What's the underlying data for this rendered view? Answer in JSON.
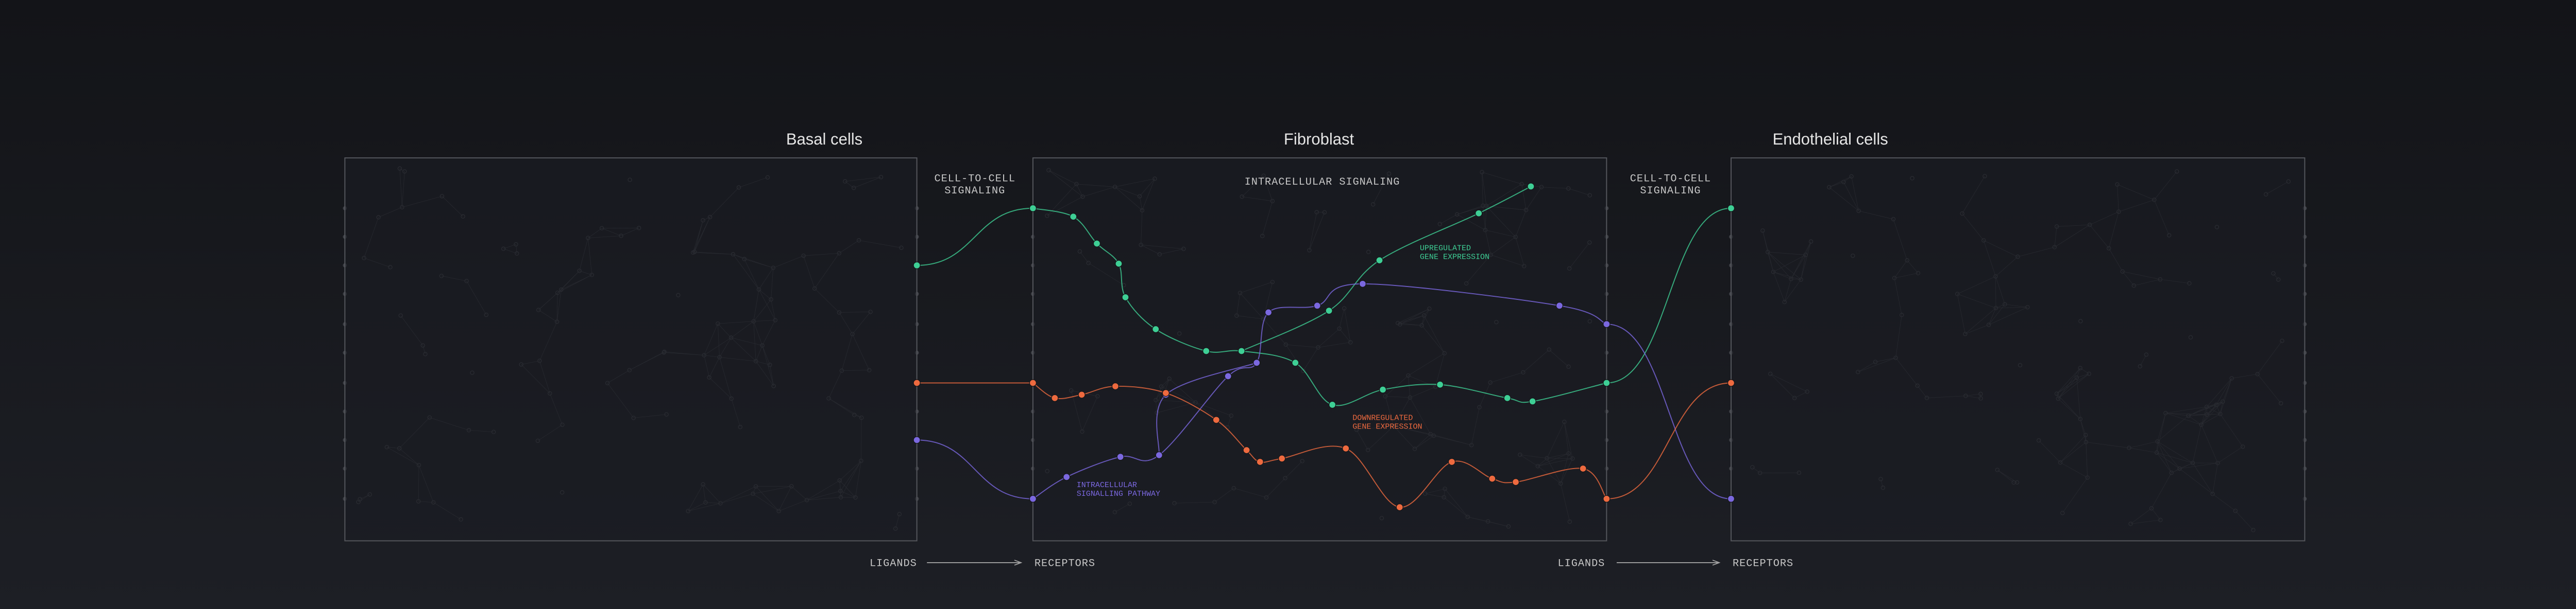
{
  "panels": [
    {
      "title": "Basal cells"
    },
    {
      "title": "Fibroblast"
    },
    {
      "title": "Endothelial cells"
    }
  ],
  "signals": [
    {
      "label": "CELL-TO-CELL\nSIGNALING"
    },
    {
      "label": "INTRACELLULAR SIGNALING"
    },
    {
      "label": "CELL-TO-CELL\nSIGNALING"
    }
  ],
  "annotations": {
    "upregulated": "UPREGULATED\nGENE EXPRESSION",
    "downregulated": "DOWNREGULATED\nGENE EXPRESSION",
    "pathway": "INTRACELLULAR\nSIGNALLING PATHWAY"
  },
  "flows": [
    {
      "from": "LIGANDS",
      "to": "RECEPTORS"
    },
    {
      "from": "LIGANDS",
      "to": "RECEPTORS"
    }
  ]
}
